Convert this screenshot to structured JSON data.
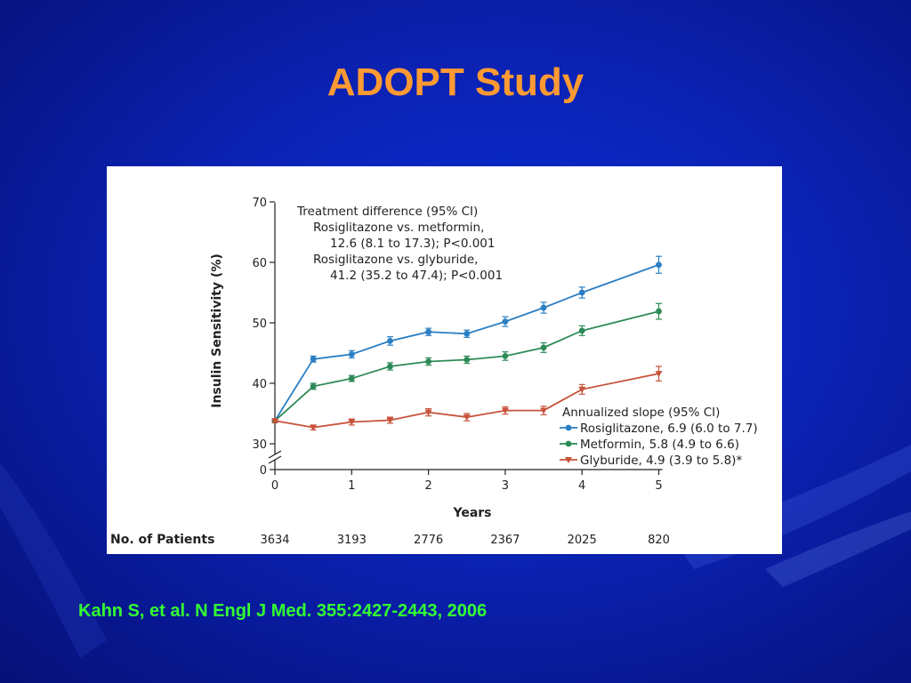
{
  "slide": {
    "title": "ADOPT Study",
    "citation": "Kahn S, et al.  N Engl J Med. 355:2427-2443, 2006"
  },
  "colors": {
    "background": "#0b22b4",
    "title": "#ff9a33",
    "citation": "#33ff33"
  },
  "chart_data": {
    "type": "line",
    "xlabel": "Years",
    "ylabel": "Insulin Sensitivity (%)",
    "ylim": [
      0,
      70
    ],
    "y_ticks": [
      "70",
      "60",
      "50",
      "40",
      "30",
      "0"
    ],
    "x_ticks": [
      "0",
      "1",
      "2",
      "3",
      "4",
      "5"
    ],
    "axis_break": "30 to 0",
    "x": [
      0,
      0.5,
      1,
      1.5,
      2,
      2.5,
      3,
      3.5,
      4,
      5
    ],
    "series": [
      {
        "name": "Rosiglitazone, 6.9 (6.0 to 7.7)",
        "color": "#2a7fc4",
        "marker": "circle",
        "values": [
          33.8,
          44.0,
          44.8,
          47.0,
          48.5,
          48.2,
          50.2,
          52.5,
          55.0,
          59.6
        ],
        "error": [
          0.3,
          0.5,
          0.6,
          0.7,
          0.6,
          0.6,
          0.8,
          0.9,
          0.9,
          1.4
        ]
      },
      {
        "name": "Metformin, 5.8 (4.9 to 6.6)",
        "color": "#2e8b57",
        "marker": "circle",
        "values": [
          33.8,
          39.5,
          40.8,
          42.8,
          43.6,
          43.9,
          44.5,
          45.9,
          48.7,
          51.9
        ],
        "error": [
          0.3,
          0.5,
          0.5,
          0.6,
          0.6,
          0.6,
          0.7,
          0.8,
          0.8,
          1.3
        ]
      },
      {
        "name": "Glyburide, 4.9 (3.9 to 5.8)*",
        "color": "#c8523a",
        "marker": "triangle-down",
        "values": [
          33.8,
          32.7,
          33.6,
          33.9,
          35.2,
          34.4,
          35.5,
          35.5,
          39.0,
          41.6
        ],
        "error": [
          0.3,
          0.4,
          0.5,
          0.5,
          0.6,
          0.6,
          0.6,
          0.7,
          0.8,
          1.2
        ]
      }
    ],
    "annotation_treatment": [
      "Treatment difference (95% CI)",
      "Rosiglitazone vs. metformin,",
      "12.6 (8.1 to 17.3); P<0.001",
      "Rosiglitazone vs. glyburide,",
      "41.2 (35.2 to 47.4); P<0.001"
    ],
    "legend_title": "Annualized slope (95% CI)",
    "patients_label": "No. of Patients",
    "patients": [
      "3634",
      "3193",
      "2776",
      "2367",
      "2025",
      "820"
    ]
  }
}
